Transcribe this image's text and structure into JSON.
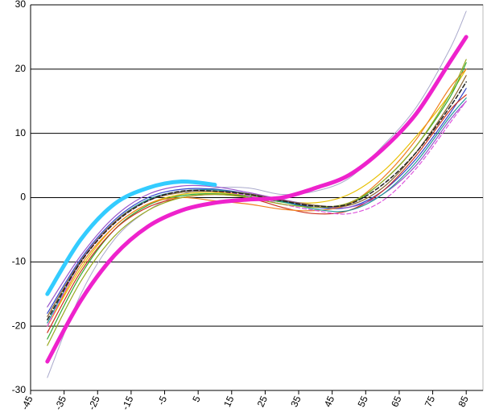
{
  "chart_data": {
    "type": "line",
    "x": [
      -40,
      -30,
      -20,
      -10,
      0,
      10,
      20,
      30,
      40,
      50,
      60,
      70,
      80,
      85
    ],
    "series": [
      {
        "color": "#aaaacc",
        "width": 1,
        "values": [
          -28,
          -15,
          -6.5,
          -2,
          0.5,
          1.5,
          1.5,
          0.5,
          1,
          3,
          8,
          14,
          23,
          29
        ]
      },
      {
        "color": "#e8c000",
        "width": 1.2,
        "values": [
          -20,
          -11,
          -4.5,
          -1,
          0.5,
          0.8,
          0.3,
          -0.5,
          -0.8,
          0.5,
          4,
          9.5,
          16,
          20
        ]
      },
      {
        "color": "#33aa33",
        "width": 1.2,
        "values": [
          -22,
          -12,
          -5,
          -1.2,
          0.3,
          0.6,
          0.2,
          -0.7,
          -1.5,
          -1,
          2.5,
          8,
          15.5,
          21
        ]
      },
      {
        "color": "#3344cc",
        "width": 1.2,
        "values": [
          -18,
          -9.5,
          -3.5,
          0,
          1.3,
          1.3,
          0.6,
          -0.5,
          -1.5,
          -1.5,
          1,
          6,
          13,
          17
        ]
      },
      {
        "color": "#cc3322",
        "width": 1.2,
        "values": [
          -21,
          -11.5,
          -5,
          -1.5,
          0,
          0.5,
          0,
          -1.5,
          -2.5,
          -2,
          1,
          6.5,
          13.5,
          16
        ]
      },
      {
        "color": "#9955cc",
        "width": 1.2,
        "values": [
          -17,
          -9,
          -3,
          0.5,
          1.8,
          1.7,
          0.8,
          -0.3,
          -1.2,
          -1.5,
          0.5,
          5,
          12,
          15
        ]
      },
      {
        "color": "#f08020",
        "width": 1.2,
        "values": [
          -20,
          -10.5,
          -4.5,
          -1,
          0,
          -0.5,
          -1,
          -1.8,
          -2,
          -1,
          3,
          9,
          17,
          20
        ]
      },
      {
        "color": "#229999",
        "width": 1.2,
        "values": [
          -19.5,
          -10,
          -3.8,
          -0.3,
          1,
          1.2,
          0.5,
          -0.6,
          -1.8,
          -2,
          0.5,
          5.5,
          12.5,
          15.5
        ]
      },
      {
        "color": "#886633",
        "width": 1.2,
        "values": [
          -18.5,
          -9.8,
          -3.8,
          -0.5,
          0.8,
          1,
          0.6,
          -0.4,
          -1.2,
          -1.2,
          1.5,
          7,
          14.5,
          19
        ]
      },
      {
        "color": "#dd55dd",
        "width": 1.2,
        "dash": true,
        "values": [
          -20,
          -10,
          -4,
          -0.5,
          1,
          1,
          0.3,
          -1,
          -2,
          -2.5,
          -0.5,
          4.5,
          11.5,
          15
        ]
      },
      {
        "color": "#99aa22",
        "width": 1.2,
        "values": [
          -23,
          -13,
          -6,
          -2,
          0,
          0.5,
          0,
          -1,
          -1.5,
          -0.8,
          2.5,
          8,
          16,
          21.5
        ]
      },
      {
        "color": "#222222",
        "width": 1.5,
        "dash": true,
        "values": [
          -19,
          -10,
          -4,
          -0.5,
          1,
          1,
          0.5,
          -0.5,
          -1.3,
          -1,
          2,
          7,
          14,
          18
        ]
      },
      {
        "color": "#33ccff",
        "width": 5,
        "values": [
          -15,
          -6.5,
          -1,
          1.5,
          2.5,
          2,
          null,
          null,
          null,
          null,
          null,
          null,
          null,
          null
        ]
      },
      {
        "color": "#ee22cc",
        "width": 5,
        "values": [
          -25.5,
          -16,
          -9,
          -4.5,
          -2,
          -0.8,
          -0.3,
          0,
          1.5,
          3.5,
          7.5,
          13,
          21,
          25
        ]
      }
    ],
    "xlim": [
      -45,
      90
    ],
    "ylim": [
      -30,
      30
    ],
    "xticks": [
      -45,
      -35,
      -25,
      -15,
      -5,
      5,
      15,
      25,
      35,
      45,
      55,
      65,
      75,
      85
    ],
    "yticks": [
      -30,
      -20,
      -10,
      0,
      10,
      20,
      30
    ],
    "grid": true
  }
}
